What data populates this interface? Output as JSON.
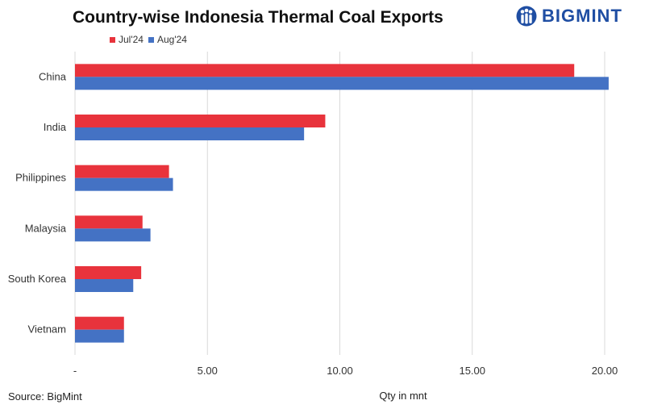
{
  "header": {
    "title": "Country-wise Indonesia Thermal Coal Exports",
    "brand": "BIGMINT"
  },
  "footer": {
    "source": "Source: BigMint"
  },
  "colors": {
    "jul": "#e8333c",
    "aug": "#4472c4",
    "brand": "#1f4ea3",
    "grid": "#d9d9d9"
  },
  "chart_data": {
    "type": "bar",
    "orientation": "horizontal",
    "title": "Country-wise Indonesia Thermal Coal Exports",
    "xlabel": "Qty in mnt",
    "ylabel": "",
    "categories": [
      "China",
      "India",
      "Philippines",
      "Malaysia",
      "South Korea",
      "Vietnam"
    ],
    "series": [
      {
        "name": "Jul'24",
        "color": "#e8333c",
        "values": [
          18.85,
          9.45,
          3.55,
          2.55,
          2.5,
          1.85
        ]
      },
      {
        "name": "Aug'24",
        "color": "#4472c4",
        "values": [
          20.15,
          8.65,
          3.7,
          2.85,
          2.2,
          1.85
        ]
      }
    ],
    "xlim": [
      0,
      20
    ],
    "xticks": [
      {
        "value": 0,
        "label": "-"
      },
      {
        "value": 5,
        "label": "5.00"
      },
      {
        "value": 10,
        "label": "10.00"
      },
      {
        "value": 15,
        "label": "15.00"
      },
      {
        "value": 20,
        "label": "20.00"
      }
    ],
    "grid": "vertical",
    "legend_position": "top-left"
  }
}
